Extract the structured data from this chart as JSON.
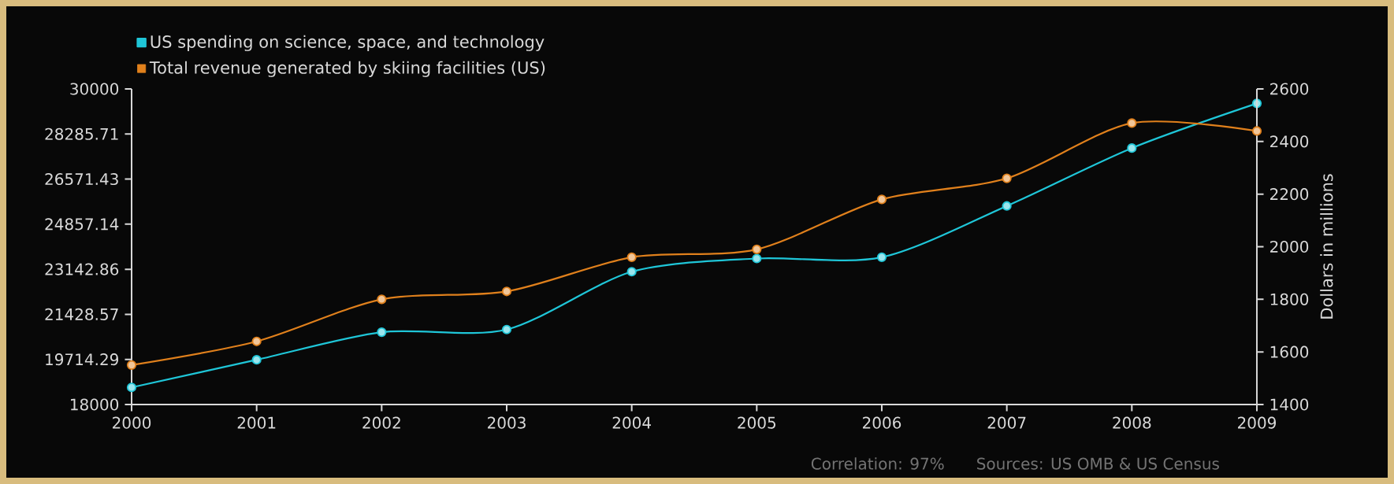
{
  "chart_data": {
    "type": "line",
    "x": [
      2000,
      2001,
      2002,
      2003,
      2004,
      2005,
      2006,
      2007,
      2008,
      2009
    ],
    "series": [
      {
        "name": "US spending on science, space, and technology",
        "color": "#1fc6d8",
        "values": [
          18650,
          19700,
          20750,
          20850,
          23050,
          23550,
          23600,
          25550,
          27750,
          29450
        ]
      },
      {
        "name": "Total revenue generated by skiing facilities (US)",
        "color": "#e0801c",
        "axis": "y2",
        "values": [
          1550,
          1640,
          1800,
          1830,
          1960,
          1990,
          2180,
          2260,
          2470,
          2440
        ]
      }
    ],
    "xlim": [
      2000,
      2009
    ],
    "xticks": [
      2000,
      2001,
      2002,
      2003,
      2004,
      2005,
      2006,
      2007,
      2008,
      2009
    ],
    "ylim": [
      18000,
      30000
    ],
    "yticks": [
      18000,
      19714.29,
      21428.57,
      23142.86,
      24857.14,
      26571.43,
      28285.71,
      30000
    ],
    "y2lim": [
      1400,
      2600
    ],
    "y2ticks": [
      1400,
      1600,
      1800,
      2000,
      2200,
      2400,
      2600
    ],
    "y2label": "Dollars in millions",
    "legend": "top left",
    "marker": "circle",
    "line_style": "solid",
    "annotations": [
      "Correlation: 97%",
      "Sources: US OMB & US Census"
    ]
  }
}
